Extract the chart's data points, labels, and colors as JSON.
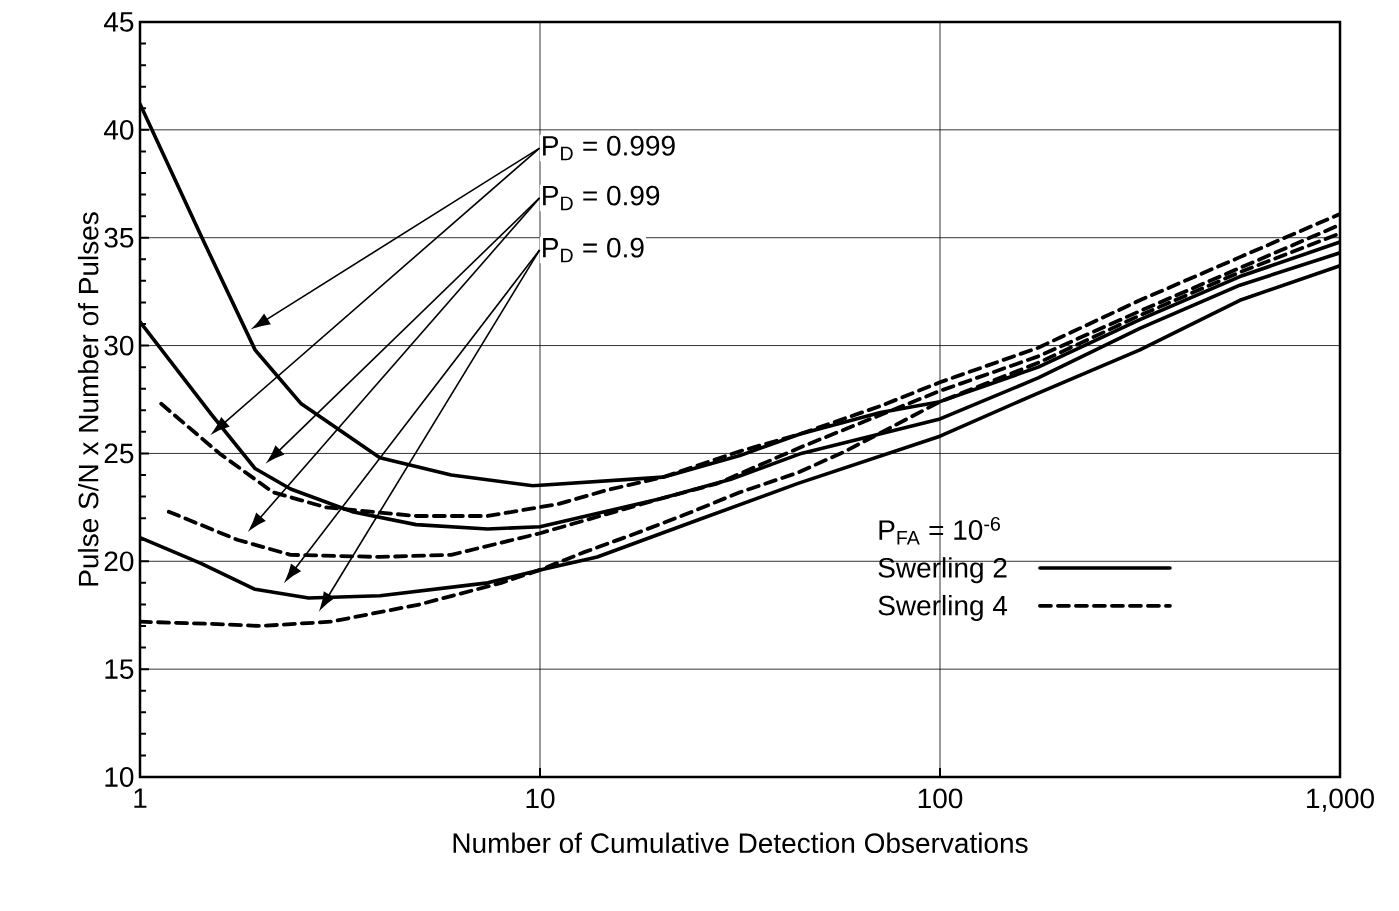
{
  "chart_data": {
    "type": "line",
    "xlabel": "Number of Cumulative Detection Observations",
    "ylabel": "Pulse S/N x Number of Pulses",
    "legend_title": "P$_{FA}$ = 10$^{-6}$",
    "log": "x",
    "xlim": [
      1,
      1000
    ],
    "ylim": [
      10,
      45
    ],
    "xticks": [
      1,
      10,
      100,
      {
        "value": 1000,
        "label": "1,000"
      }
    ],
    "yticks": [
      10,
      15,
      20,
      25,
      30,
      35,
      40,
      45
    ],
    "grid": true,
    "legend": "bottom right",
    "marker": "none",
    "series": [
      {
        "name": "Swerling 2",
        "color": "#000000",
        "line_style": "solid",
        "x": [
          1,
          1.42,
          1.94,
          2.53,
          3.98,
          6,
          9.6,
          20.3,
          31.6,
          44.7,
          71,
          100,
          176,
          316,
          562,
          1000
        ],
        "values": [
          41.2,
          35.1,
          29.8,
          27.3,
          24.8,
          24.0,
          23.5,
          23.9,
          24.9,
          25.9,
          26.9,
          27.4,
          29.0,
          31.2,
          33.2,
          34.8
        ]
      },
      {
        "color": "#000000",
        "line_style": "solid",
        "x": [
          1,
          1.51,
          1.94,
          2.38,
          3.39,
          4.9,
          7.4,
          10,
          20,
          30,
          45,
          100,
          176,
          316,
          562,
          1000
        ],
        "values": [
          31.1,
          26.8,
          24.3,
          23.35,
          22.3,
          21.7,
          21.5,
          21.6,
          22.9,
          23.8,
          25.0,
          26.6,
          28.5,
          30.8,
          32.8,
          34.3
        ]
      },
      {
        "color": "#000000",
        "line_style": "solid",
        "x": [
          1,
          1.42,
          1.94,
          2.64,
          3.98,
          7.4,
          10,
          13.9,
          24.7,
          44,
          100,
          176,
          316,
          562,
          1000
        ],
        "values": [
          21.1,
          19.9,
          18.7,
          18.3,
          18.4,
          19.0,
          19.6,
          20.2,
          21.9,
          23.6,
          25.8,
          27.8,
          29.8,
          32.1,
          33.7
        ]
      },
      {
        "name": "Swerling 4",
        "color": "#000000",
        "line_style": "dashed",
        "x": [
          1.13,
          1.58,
          2.15,
          2.92,
          4.9,
          7.4,
          11.1,
          14.7,
          20.3,
          31.6,
          44.7,
          71,
          100,
          176,
          316,
          562,
          1000
        ],
        "values": [
          27.3,
          25.0,
          23.2,
          22.5,
          22.1,
          22.1,
          22.65,
          23.3,
          23.9,
          25.1,
          25.9,
          27.2,
          28.3,
          29.9,
          32.1,
          34.1,
          36.1
        ]
      },
      {
        "color": "#000000",
        "line_style": "dashed",
        "x": [
          1.18,
          1.75,
          2.38,
          3.98,
          6,
          10,
          20,
          27.7,
          45,
          100,
          176,
          316,
          562,
          1000
        ],
        "values": [
          22.3,
          21.0,
          20.3,
          20.2,
          20.3,
          21.3,
          22.9,
          23.6,
          25.3,
          27.9,
          29.5,
          31.6,
          33.6,
          35.6
        ]
      },
      {
        "color": "#000000",
        "line_style": "dashed",
        "x": [
          1,
          1.5,
          2,
          3,
          5,
          8,
          10,
          12.8,
          17.4,
          23.3,
          31.6,
          44,
          58,
          100,
          176,
          316,
          562,
          1000
        ],
        "values": [
          17.2,
          17.1,
          17.0,
          17.2,
          18.0,
          19.0,
          19.6,
          20.4,
          21.3,
          22.2,
          23.2,
          24.1,
          25.1,
          27.4,
          29.2,
          31.4,
          33.4,
          35.2
        ]
      }
    ],
    "annotations": [
      "P$_{D}$ = 0.999",
      "P$_{D}$  = 0.99",
      "P$_{D}$ = 0.9"
    ]
  }
}
